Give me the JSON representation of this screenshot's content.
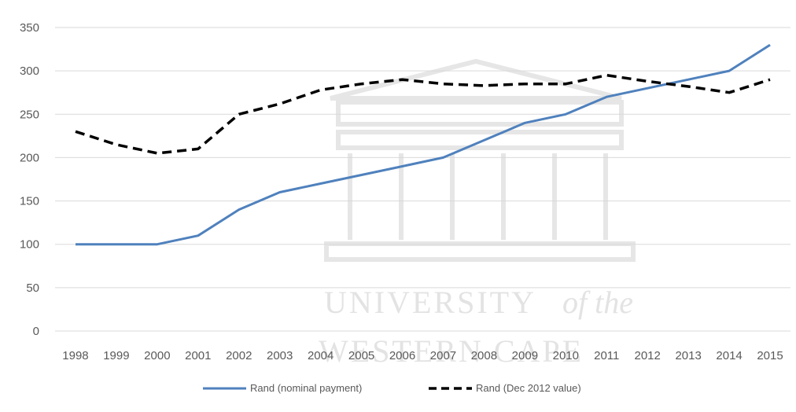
{
  "chart_data": {
    "type": "line",
    "title": "",
    "xlabel": "",
    "ylabel": "",
    "categories": [
      "1998",
      "1999",
      "2000",
      "2001",
      "2002",
      "2003",
      "2004",
      "2005",
      "2006",
      "2007",
      "2008",
      "2009",
      "2010",
      "2011",
      "2012",
      "2013",
      "2014",
      "2015"
    ],
    "yticks": [
      "0",
      "50",
      "100",
      "150",
      "200",
      "250",
      "300",
      "350"
    ],
    "ylim": [
      0,
      350
    ],
    "grid": true,
    "legend_position": "bottom",
    "series": [
      {
        "name": "Rand (nominal payment)",
        "color": "#4f81bd",
        "style": "solid",
        "values": [
          100,
          100,
          100,
          110,
          140,
          160,
          170,
          180,
          190,
          200,
          220,
          240,
          250,
          270,
          280,
          290,
          300,
          330
        ]
      },
      {
        "name": "Rand (Dec 2012 value)",
        "color": "#000000",
        "style": "dashed",
        "values": [
          230,
          215,
          205,
          210,
          250,
          262,
          278,
          285,
          290,
          285,
          283,
          285,
          285,
          295,
          288,
          282,
          275,
          290
        ]
      }
    ]
  },
  "watermark": {
    "line1": "UNIVERSITY",
    "line1_suffix": "of the",
    "line2": "WESTERN CAPE"
  }
}
